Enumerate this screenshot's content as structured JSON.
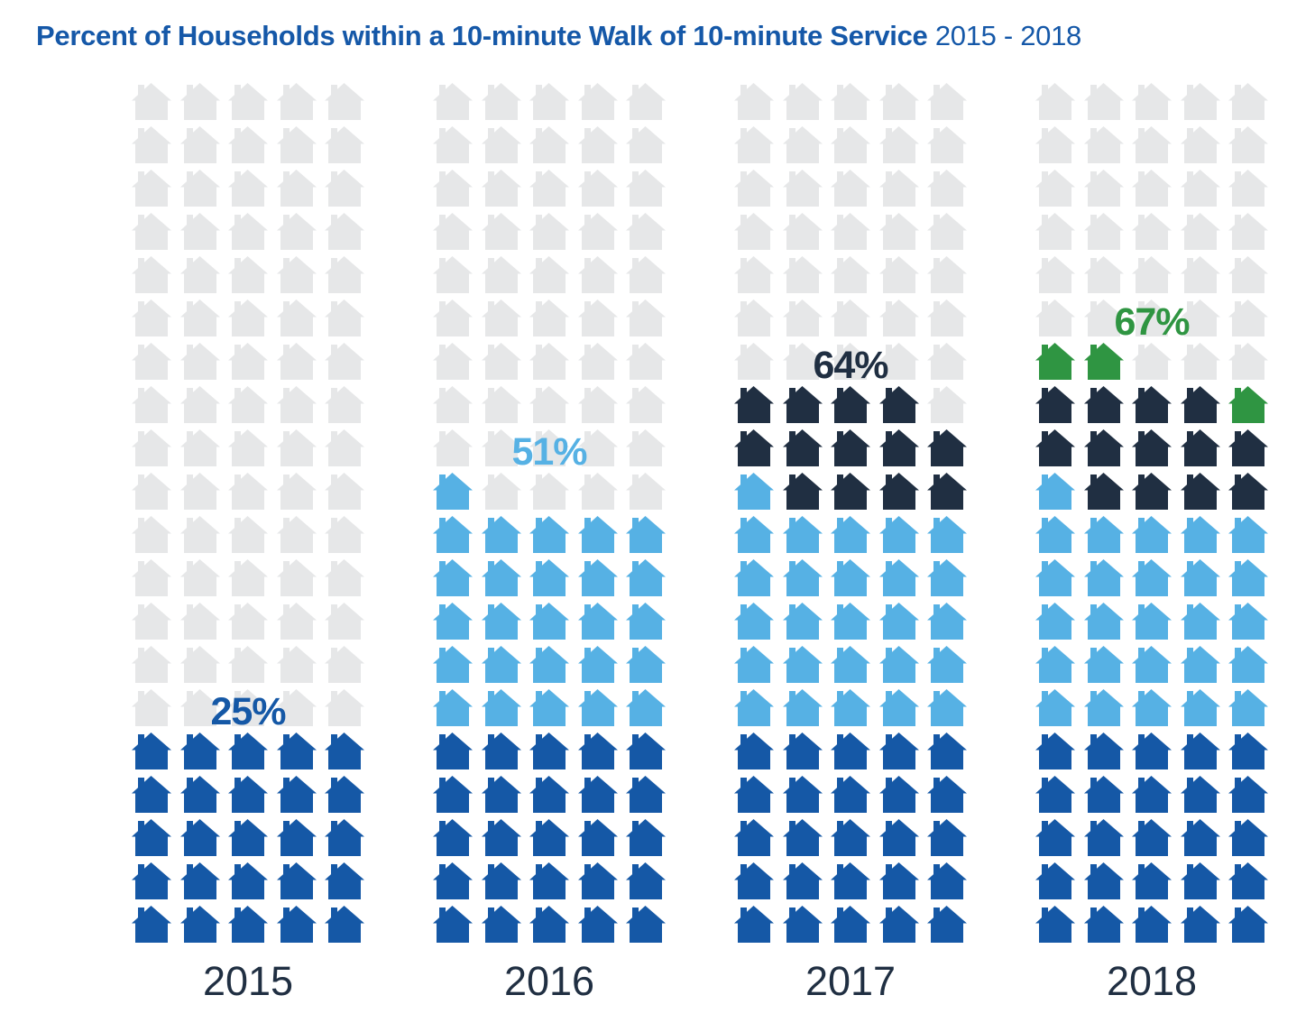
{
  "title": {
    "main": "Percent of Households within a 10-minute Walk of 10-minute Service",
    "range": "2015 - 2018"
  },
  "colors": {
    "title_blue": "#1558A8",
    "gray": "#E6E7E8",
    "dark_blue": "#1558A6",
    "light_blue": "#56B1E4",
    "navy": "#202F42",
    "green": "#2F9542",
    "year_label": "#202F42"
  },
  "legend_keys": {
    "G": "gray",
    "D": "dark_blue",
    "L": "light_blue",
    "N": "navy",
    "E": "green"
  },
  "columns": [
    {
      "year": "2015",
      "value_label": "25%",
      "label_color_key": "D",
      "rows": [
        "GGGGG",
        "GGGGG",
        "GGGGG",
        "GGGGG",
        "GGGGG",
        "GGGGG",
        "GGGGG",
        "GGGGG",
        "GGGGG",
        "GGGGG",
        "GGGGG",
        "GGGGG",
        "GGGGG",
        "GGGGG",
        "GGGGG",
        "DDDDD",
        "DDDDD",
        "DDDDD",
        "DDDDD",
        "DDDDD"
      ]
    },
    {
      "year": "2016",
      "value_label": "51%",
      "label_color_key": "L",
      "rows": [
        "GGGGG",
        "GGGGG",
        "GGGGG",
        "GGGGG",
        "GGGGG",
        "GGGGG",
        "GGGGG",
        "GGGGG",
        "GGGGG",
        "LGGGG",
        "LLLLL",
        "LLLLL",
        "LLLLL",
        "LLLLL",
        "LLLLL",
        "DDDDD",
        "DDDDD",
        "DDDDD",
        "DDDDD",
        "DDDDD"
      ]
    },
    {
      "year": "2017",
      "value_label": "64%",
      "label_color_key": "N",
      "rows": [
        "GGGGG",
        "GGGGG",
        "GGGGG",
        "GGGGG",
        "GGGGG",
        "GGGGG",
        "GGGGG",
        "NNNNG",
        "NNNNN",
        "LNNNN",
        "LLLLL",
        "LLLLL",
        "LLLLL",
        "LLLLL",
        "LLLLL",
        "DDDDD",
        "DDDDD",
        "DDDDD",
        "DDDDD",
        "DDDDD"
      ]
    },
    {
      "year": "2018",
      "value_label": "67%",
      "label_color_key": "E",
      "rows": [
        "GGGGG",
        "GGGGG",
        "GGGGG",
        "GGGGG",
        "GGGGG",
        "GGGGG",
        "EEGGG",
        "NNNNE",
        "NNNNN",
        "LNNNN",
        "LLLLL",
        "LLLLL",
        "LLLLL",
        "LLLLL",
        "LLLLL",
        "DDDDD",
        "DDDDD",
        "DDDDD",
        "DDDDD",
        "DDDDD"
      ]
    }
  ],
  "chart_data": {
    "type": "pictograph",
    "title": "Percent of Households within a 10-minute Walk of 10-minute Service",
    "subtitle": "2015 - 2018",
    "categories": [
      "2015",
      "2016",
      "2017",
      "2018"
    ],
    "values": [
      25,
      51,
      64,
      67
    ],
    "unit": "percent of households",
    "icon": "house",
    "icon_value_percent": 1,
    "grid_per_category": "5 columns x 20 rows = 100 houses",
    "fill_order": "bottom-up, left-to-right within partial rows",
    "segment_colors_by_year": {
      "2015": {
        "dark_blue": 25,
        "gray": 75
      },
      "2016": {
        "dark_blue": 25,
        "light_blue": 26,
        "gray": 49
      },
      "2017": {
        "dark_blue": 25,
        "light_blue": 26,
        "navy": 13,
        "gray": 36
      },
      "2018": {
        "dark_blue": 25,
        "light_blue": 26,
        "navy": 13,
        "green": 3,
        "gray": 33
      }
    },
    "legend_position": "none",
    "value_labels_shown": [
      "25%",
      "51%",
      "64%",
      "67%"
    ]
  }
}
